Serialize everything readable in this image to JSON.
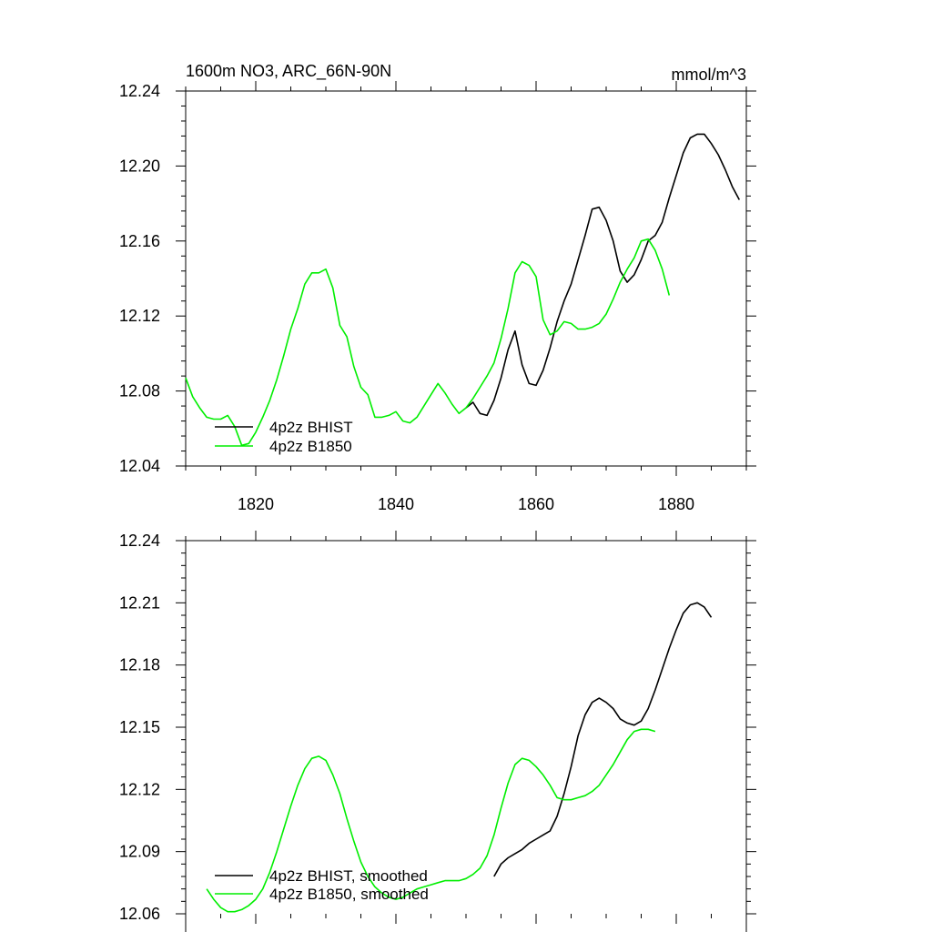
{
  "chart_data": [
    {
      "type": "line",
      "title": "1600m NO3, ARC_66N-90N",
      "units": "mmol/m^3",
      "xlim": [
        1810,
        1890
      ],
      "ylim": [
        12.04,
        12.24
      ],
      "x_ticks": [
        1820,
        1840,
        1860,
        1880
      ],
      "y_ticks": [
        12.04,
        12.08,
        12.12,
        12.16,
        12.2,
        12.24
      ],
      "y_tick_labels": [
        "12.04",
        "12.08",
        "12.12",
        "12.16",
        "12.20",
        "12.24"
      ],
      "series": [
        {
          "name": "4p2z BHIST",
          "color": "#000000",
          "points": [
            [
              1850,
              12.071
            ],
            [
              1851,
              12.074
            ],
            [
              1852,
              12.068
            ],
            [
              1853,
              12.067
            ],
            [
              1854,
              12.075
            ],
            [
              1855,
              12.087
            ],
            [
              1856,
              12.102
            ],
            [
              1857,
              12.112
            ],
            [
              1858,
              12.094
            ],
            [
              1859,
              12.084
            ],
            [
              1860,
              12.083
            ],
            [
              1861,
              12.091
            ],
            [
              1862,
              12.103
            ],
            [
              1863,
              12.117
            ],
            [
              1864,
              12.128
            ],
            [
              1865,
              12.137
            ],
            [
              1866,
              12.15
            ],
            [
              1867,
              12.163
            ],
            [
              1868,
              12.177
            ],
            [
              1869,
              12.178
            ],
            [
              1870,
              12.171
            ],
            [
              1871,
              12.16
            ],
            [
              1872,
              12.144
            ],
            [
              1873,
              12.138
            ],
            [
              1874,
              12.142
            ],
            [
              1875,
              12.15
            ],
            [
              1876,
              12.16
            ],
            [
              1877,
              12.163
            ],
            [
              1878,
              12.17
            ],
            [
              1879,
              12.183
            ],
            [
              1880,
              12.195
            ],
            [
              1881,
              12.207
            ],
            [
              1882,
              12.215
            ],
            [
              1883,
              12.217
            ],
            [
              1884,
              12.217
            ],
            [
              1885,
              12.212
            ],
            [
              1886,
              12.206
            ],
            [
              1887,
              12.198
            ],
            [
              1888,
              12.189
            ],
            [
              1889,
              12.182
            ]
          ]
        },
        {
          "name": "4p2z B1850",
          "color": "#00ee00",
          "points": [
            [
              1810,
              12.087
            ],
            [
              1811,
              12.077
            ],
            [
              1812,
              12.071
            ],
            [
              1813,
              12.066
            ],
            [
              1814,
              12.065
            ],
            [
              1815,
              12.065
            ],
            [
              1816,
              12.067
            ],
            [
              1817,
              12.061
            ],
            [
              1818,
              12.051
            ],
            [
              1819,
              12.052
            ],
            [
              1820,
              12.058
            ],
            [
              1821,
              12.066
            ],
            [
              1822,
              12.075
            ],
            [
              1823,
              12.086
            ],
            [
              1824,
              12.099
            ],
            [
              1825,
              12.113
            ],
            [
              1826,
              12.124
            ],
            [
              1827,
              12.137
            ],
            [
              1828,
              12.143
            ],
            [
              1829,
              12.143
            ],
            [
              1830,
              12.145
            ],
            [
              1831,
              12.135
            ],
            [
              1832,
              12.115
            ],
            [
              1833,
              12.109
            ],
            [
              1834,
              12.093
            ],
            [
              1835,
              12.082
            ],
            [
              1836,
              12.078
            ],
            [
              1837,
              12.066
            ],
            [
              1838,
              12.066
            ],
            [
              1839,
              12.067
            ],
            [
              1840,
              12.069
            ],
            [
              1841,
              12.064
            ],
            [
              1842,
              12.063
            ],
            [
              1843,
              12.066
            ],
            [
              1844,
              12.072
            ],
            [
              1845,
              12.078
            ],
            [
              1846,
              12.084
            ],
            [
              1847,
              12.079
            ],
            [
              1848,
              12.073
            ],
            [
              1849,
              12.068
            ],
            [
              1850,
              12.071
            ],
            [
              1851,
              12.076
            ],
            [
              1852,
              12.082
            ],
            [
              1853,
              12.088
            ],
            [
              1854,
              12.095
            ],
            [
              1855,
              12.108
            ],
            [
              1856,
              12.124
            ],
            [
              1857,
              12.143
            ],
            [
              1858,
              12.149
            ],
            [
              1859,
              12.147
            ],
            [
              1860,
              12.141
            ],
            [
              1861,
              12.118
            ],
            [
              1862,
              12.11
            ],
            [
              1863,
              12.112
            ],
            [
              1864,
              12.117
            ],
            [
              1865,
              12.116
            ],
            [
              1866,
              12.113
            ],
            [
              1867,
              12.113
            ],
            [
              1868,
              12.114
            ],
            [
              1869,
              12.116
            ],
            [
              1870,
              12.121
            ],
            [
              1871,
              12.129
            ],
            [
              1872,
              12.138
            ],
            [
              1873,
              12.145
            ],
            [
              1874,
              12.151
            ],
            [
              1875,
              12.16
            ],
            [
              1876,
              12.161
            ],
            [
              1877,
              12.155
            ],
            [
              1878,
              12.145
            ],
            [
              1879,
              12.131
            ]
          ]
        }
      ],
      "legend": [
        "4p2z BHIST",
        "4p2z B1850"
      ],
      "legend_placement": "bottom-left"
    },
    {
      "type": "line",
      "title": "",
      "units": "",
      "xlim": [
        1810,
        1890
      ],
      "ylim": [
        12.06,
        12.24
      ],
      "x_ticks": [
        1820,
        1840,
        1860,
        1880
      ],
      "y_ticks": [
        12.06,
        12.09,
        12.12,
        12.15,
        12.18,
        12.21,
        12.24
      ],
      "y_tick_labels": [
        "12.06",
        "12.09",
        "12.12",
        "12.15",
        "12.18",
        "12.21",
        "12.24"
      ],
      "series": [
        {
          "name": "4p2z BHIST, smoothed",
          "color": "#000000",
          "points": [
            [
              1854,
              12.078
            ],
            [
              1855,
              12.084
            ],
            [
              1856,
              12.087
            ],
            [
              1857,
              12.089
            ],
            [
              1858,
              12.091
            ],
            [
              1859,
              12.094
            ],
            [
              1860,
              12.096
            ],
            [
              1861,
              12.098
            ],
            [
              1862,
              12.1
            ],
            [
              1863,
              12.107
            ],
            [
              1864,
              12.118
            ],
            [
              1865,
              12.131
            ],
            [
              1866,
              12.146
            ],
            [
              1867,
              12.156
            ],
            [
              1868,
              12.162
            ],
            [
              1869,
              12.164
            ],
            [
              1870,
              12.162
            ],
            [
              1871,
              12.159
            ],
            [
              1872,
              12.154
            ],
            [
              1873,
              12.152
            ],
            [
              1874,
              12.151
            ],
            [
              1875,
              12.153
            ],
            [
              1876,
              12.159
            ],
            [
              1877,
              12.168
            ],
            [
              1878,
              12.178
            ],
            [
              1879,
              12.188
            ],
            [
              1880,
              12.197
            ],
            [
              1881,
              12.205
            ],
            [
              1882,
              12.209
            ],
            [
              1883,
              12.21
            ],
            [
              1884,
              12.208
            ],
            [
              1885,
              12.203
            ]
          ]
        },
        {
          "name": "4p2z B1850, smoothed",
          "color": "#00ee00",
          "points": [
            [
              1813,
              12.072
            ],
            [
              1814,
              12.067
            ],
            [
              1815,
              12.063
            ],
            [
              1816,
              12.061
            ],
            [
              1817,
              12.061
            ],
            [
              1818,
              12.062
            ],
            [
              1819,
              12.064
            ],
            [
              1820,
              12.067
            ],
            [
              1821,
              12.072
            ],
            [
              1822,
              12.08
            ],
            [
              1823,
              12.09
            ],
            [
              1824,
              12.101
            ],
            [
              1825,
              12.112
            ],
            [
              1826,
              12.122
            ],
            [
              1827,
              12.13
            ],
            [
              1828,
              12.135
            ],
            [
              1829,
              12.136
            ],
            [
              1830,
              12.134
            ],
            [
              1831,
              12.127
            ],
            [
              1832,
              12.118
            ],
            [
              1833,
              12.106
            ],
            [
              1834,
              12.095
            ],
            [
              1835,
              12.085
            ],
            [
              1836,
              12.078
            ],
            [
              1837,
              12.073
            ],
            [
              1838,
              12.07
            ],
            [
              1839,
              12.068
            ],
            [
              1840,
              12.067
            ],
            [
              1841,
              12.068
            ],
            [
              1842,
              12.07
            ],
            [
              1843,
              12.072
            ],
            [
              1844,
              12.073
            ],
            [
              1845,
              12.074
            ],
            [
              1846,
              12.075
            ],
            [
              1847,
              12.076
            ],
            [
              1848,
              12.076
            ],
            [
              1849,
              12.076
            ],
            [
              1850,
              12.077
            ],
            [
              1851,
              12.079
            ],
            [
              1852,
              12.082
            ],
            [
              1853,
              12.088
            ],
            [
              1854,
              12.098
            ],
            [
              1855,
              12.111
            ],
            [
              1856,
              12.123
            ],
            [
              1857,
              12.132
            ],
            [
              1858,
              12.135
            ],
            [
              1859,
              12.134
            ],
            [
              1860,
              12.131
            ],
            [
              1861,
              12.127
            ],
            [
              1862,
              12.122
            ],
            [
              1863,
              12.116
            ],
            [
              1864,
              12.115
            ],
            [
              1865,
              12.115
            ],
            [
              1866,
              12.116
            ],
            [
              1867,
              12.117
            ],
            [
              1868,
              12.119
            ],
            [
              1869,
              12.122
            ],
            [
              1870,
              12.127
            ],
            [
              1871,
              12.132
            ],
            [
              1872,
              12.138
            ],
            [
              1873,
              12.144
            ],
            [
              1874,
              12.148
            ],
            [
              1875,
              12.149
            ],
            [
              1876,
              12.149
            ],
            [
              1877,
              12.148
            ]
          ]
        }
      ],
      "legend": [
        "4p2z BHIST, smoothed",
        "4p2z B1850, smoothed"
      ],
      "legend_placement": "bottom-left"
    }
  ]
}
